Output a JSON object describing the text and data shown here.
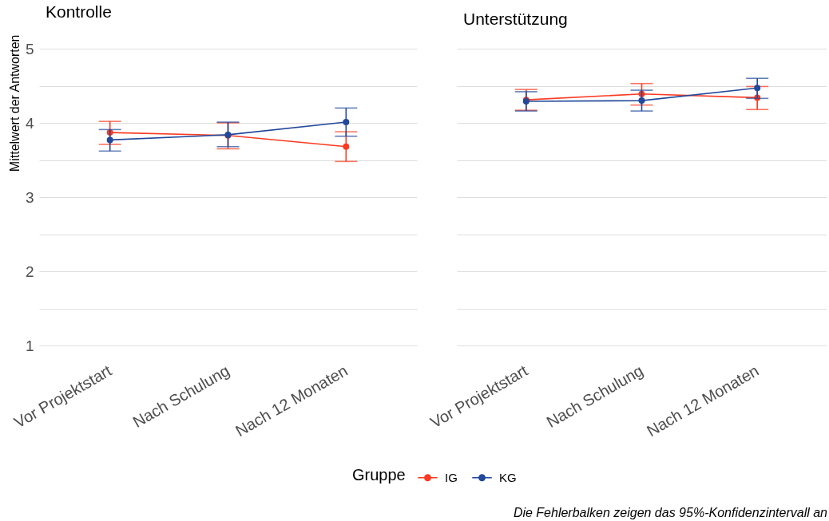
{
  "chart_data": [
    {
      "type": "line",
      "title": "Kontrolle",
      "ylabel": "Mittelwert der Antworten",
      "categories": [
        "Vor Projektstart",
        "Nach Schulung",
        "Nach 12 Monaten"
      ],
      "series": [
        {
          "name": "IG",
          "color": "#fb3a21",
          "values": [
            3.87,
            3.83,
            3.68
          ],
          "errors": [
            [
              3.71,
              4.02
            ],
            [
              3.65,
              4.0
            ],
            [
              3.48,
              3.88
            ]
          ]
        },
        {
          "name": "KG",
          "color": "#21489a",
          "values": [
            3.77,
            3.84,
            4.01
          ],
          "errors": [
            [
              3.62,
              3.91
            ],
            [
              3.68,
              4.01
            ],
            [
              3.82,
              4.2
            ]
          ]
        }
      ],
      "ylim": [
        1,
        5
      ],
      "yticks": [
        1,
        {
          "value": 1.5,
          "label": null
        },
        2,
        {
          "value": 2.5,
          "label": null
        },
        3,
        {
          "value": 3.5,
          "label": null
        },
        4,
        {
          "value": 4.5,
          "label": null
        },
        5
      ],
      "grid": "y",
      "marker": "circle",
      "legend": "bottom",
      "legend_title": "Gruppe"
    },
    {
      "type": "line",
      "title": "Unterstützung",
      "categories": [
        "Vor Projektstart",
        "Nach Schulung",
        "Nach 12 Monaten"
      ],
      "series": [
        {
          "name": "IG",
          "color": "#fb3a21",
          "values": [
            4.31,
            4.39,
            4.34
          ],
          "errors": [
            [
              4.17,
              4.45
            ],
            [
              4.24,
              4.53
            ],
            [
              4.18,
              4.49
            ]
          ]
        },
        {
          "name": "KG",
          "color": "#21489a",
          "values": [
            4.29,
            4.3,
            4.47
          ],
          "errors": [
            [
              4.16,
              4.42
            ],
            [
              4.16,
              4.44
            ],
            [
              4.33,
              4.6
            ]
          ]
        }
      ],
      "ylim": [
        1,
        5
      ],
      "yticks": [
        1,
        {
          "value": 1.5,
          "label": null
        },
        2,
        {
          "value": 2.5,
          "label": null
        },
        3,
        {
          "value": 3.5,
          "label": null
        },
        4,
        {
          "value": 4.5,
          "label": null
        },
        5
      ],
      "grid": "y",
      "marker": "circle",
      "tick_labels": "x",
      "annotations": [
        "Die Fehlerbalken zeigen das 95%-Konfidenzintervall an"
      ]
    }
  ]
}
